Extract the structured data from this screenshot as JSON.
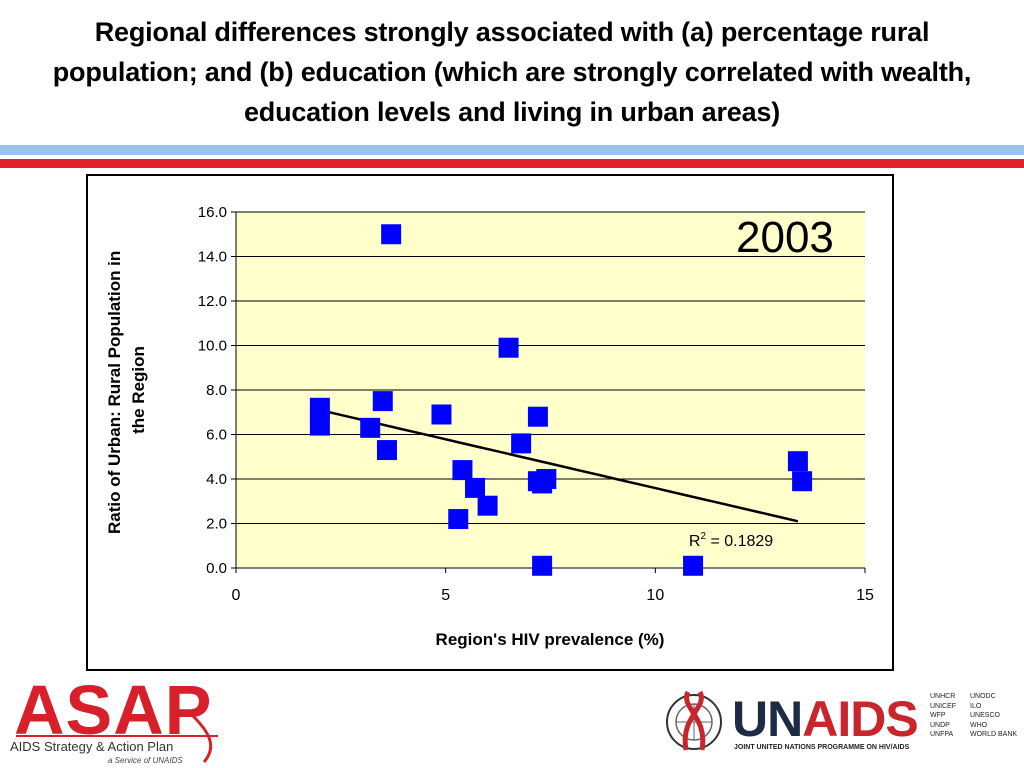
{
  "slide": {
    "title": "Regional differences strongly associated with (a) percentage rural population; and (b) education (which are strongly correlated with wealth, education levels and living in urban areas)"
  },
  "colors": {
    "plot_background": "#ffffcc",
    "marker": "#0000ff",
    "trendline": "#000000",
    "stripe_blue": "#9cc3ee",
    "stripe_red": "#e3222a",
    "asap_red": "#d8202a",
    "unaids_navy": "#1f2b44"
  },
  "chart_data": {
    "type": "scatter",
    "title": "",
    "year_label": "2003",
    "xlabel": "Region's HIV prevalence (%)",
    "ylabel": "Ratio of Urban: Rural Population in the Region",
    "xlim": [
      0,
      15
    ],
    "ylim": [
      0,
      16
    ],
    "x_ticks": [
      "0",
      "5",
      "10",
      "15"
    ],
    "y_ticks": [
      "0.0",
      "2.0",
      "4.0",
      "6.0",
      "8.0",
      "10.0",
      "12.0",
      "14.0",
      "16.0"
    ],
    "grid": "horizontal",
    "series": [
      {
        "points": [
          {
            "x": 2.0,
            "y": 7.2
          },
          {
            "x": 2.0,
            "y": 6.4
          },
          {
            "x": 3.2,
            "y": 6.3
          },
          {
            "x": 3.5,
            "y": 7.5
          },
          {
            "x": 3.6,
            "y": 5.3
          },
          {
            "x": 3.7,
            "y": 15.0
          },
          {
            "x": 4.9,
            "y": 6.9
          },
          {
            "x": 5.3,
            "y": 2.2
          },
          {
            "x": 5.4,
            "y": 4.4
          },
          {
            "x": 5.7,
            "y": 3.6
          },
          {
            "x": 6.0,
            "y": 2.8
          },
          {
            "x": 6.5,
            "y": 9.9
          },
          {
            "x": 6.8,
            "y": 5.6
          },
          {
            "x": 7.2,
            "y": 6.8
          },
          {
            "x": 7.2,
            "y": 3.9
          },
          {
            "x": 7.3,
            "y": 3.8
          },
          {
            "x": 7.4,
            "y": 4.0
          },
          {
            "x": 7.3,
            "y": 0.1
          },
          {
            "x": 10.9,
            "y": 0.1
          },
          {
            "x": 13.4,
            "y": 4.8
          },
          {
            "x": 13.5,
            "y": 3.9
          }
        ]
      }
    ],
    "trendline": {
      "type": "linear",
      "x_range": [
        2.0,
        13.4
      ],
      "y_range": [
        7.1,
        2.1
      ],
      "label": "R",
      "label_sup": "2",
      "label_value": " = 0.1829"
    }
  },
  "logos": {
    "asap": {
      "word": "ASAP",
      "tagline": "AIDS Strategy & Action Plan",
      "sub": "a Service of UNAIDS"
    },
    "unaids": {
      "word_un": "UN",
      "word_aids": "AIDS",
      "tagline": "JOINT UNITED NATIONS PROGRAMME ON HIV/AIDS",
      "cosponsors": [
        "UNHCR",
        "UNODC",
        "UNICEF",
        "ILO",
        "WFP",
        "UNESCO",
        "UNDP",
        "WHO",
        "UNFPA",
        "WORLD BANK"
      ]
    }
  }
}
